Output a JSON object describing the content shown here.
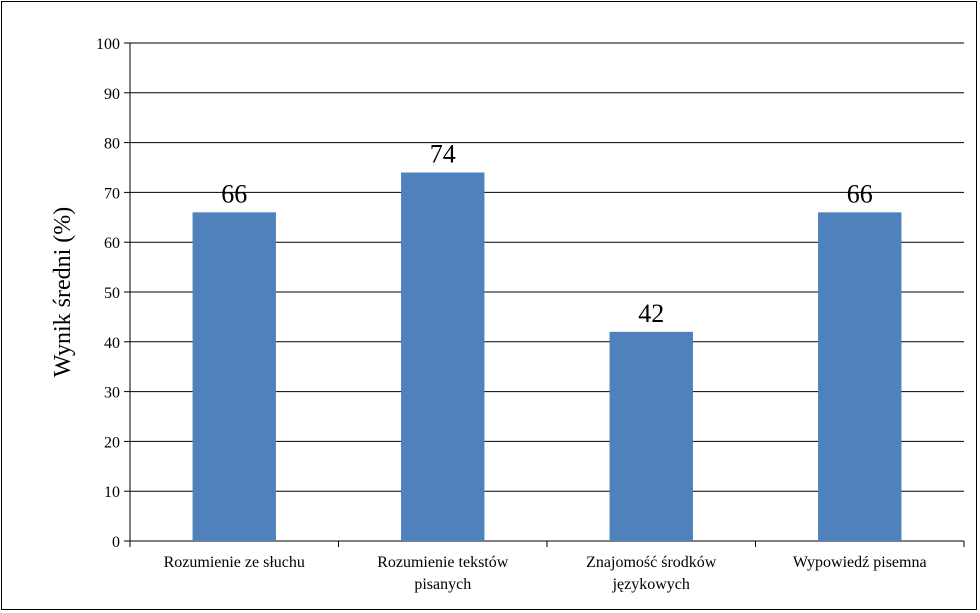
{
  "chart_data": {
    "type": "bar",
    "categories": [
      [
        "Rozumienie ze słuchu"
      ],
      [
        "Rozumienie tekstów",
        "pisanych"
      ],
      [
        "Znajomość środków",
        "językowych"
      ],
      [
        "Wypowiedź pisemna"
      ]
    ],
    "values": [
      66,
      74,
      42,
      66
    ],
    "data_labels": [
      "66",
      "74",
      "42",
      "66"
    ],
    "title": "",
    "xlabel": "",
    "ylabel": "Wynik średni (%)",
    "ylim": [
      0,
      100
    ],
    "yticks": [
      0,
      10,
      20,
      30,
      40,
      50,
      60,
      70,
      80,
      90,
      100
    ],
    "grid": true,
    "legend": "none",
    "colors": {
      "bar": "#4f81bd",
      "grid": "#000000",
      "axis": "#000000"
    }
  }
}
